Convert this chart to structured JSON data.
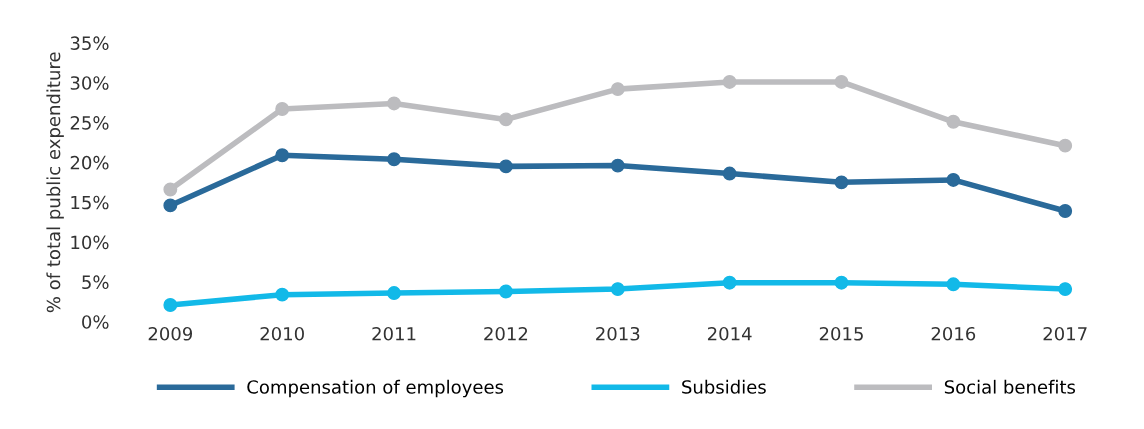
{
  "chart_data": {
    "type": "line",
    "ylabel": "% of total public expenditure",
    "categories": [
      "2009",
      "2010",
      "2011",
      "2012",
      "2013",
      "2014",
      "2015",
      "2016",
      "2017"
    ],
    "series": [
      {
        "name": "Compensation of employees",
        "color": "#2a6a9a",
        "values": [
          14.6,
          20.9,
          20.4,
          19.5,
          19.6,
          18.6,
          17.5,
          17.8,
          13.9
        ]
      },
      {
        "name": "Subsidies",
        "color": "#12b9e8",
        "values": [
          2.1,
          3.4,
          3.6,
          3.8,
          4.1,
          4.9,
          4.9,
          4.7,
          4.1
        ]
      },
      {
        "name": "Social benefits",
        "color": "#bcbcbf",
        "values": [
          16.6,
          26.7,
          27.4,
          25.4,
          29.2,
          30.1,
          30.1,
          25.1,
          22.1
        ]
      }
    ],
    "ylim": [
      0,
      35
    ],
    "yticks": [
      {
        "value": 0,
        "label": "0%"
      },
      {
        "value": 5,
        "label": "5%"
      },
      {
        "value": 10,
        "label": "10%"
      },
      {
        "value": 15,
        "label": "15%"
      },
      {
        "value": 20,
        "label": "20%"
      },
      {
        "value": 25,
        "label": "25%"
      },
      {
        "value": 30,
        "label": "30%"
      },
      {
        "value": 35,
        "label": "35%"
      }
    ],
    "grid": false,
    "legend": "bottom",
    "marker": "circle",
    "line_style": "solid"
  }
}
